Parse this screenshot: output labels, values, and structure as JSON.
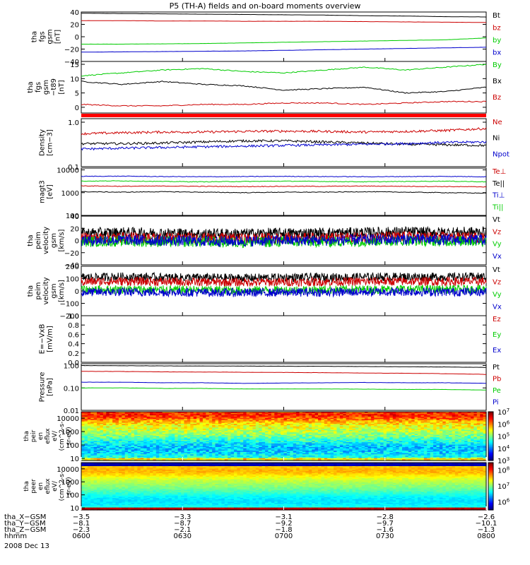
{
  "title": "P5 (TH-A) fields and on-board moments overview",
  "chart_data": {
    "type": "line",
    "time_ticks": [
      "0600",
      "0630",
      "0700",
      "0730",
      "0800"
    ],
    "time_range": [
      "0600",
      "0800"
    ],
    "date": "2008 Dec 13",
    "panels": [
      {
        "id": "fgs",
        "ylabel": [
          "tha",
          "fgs",
          "gsm",
          "[nT]"
        ],
        "yticks": [
          "40",
          "20",
          "0",
          "−20",
          "−40"
        ],
        "ylim": [
          -40,
          40
        ],
        "series": [
          {
            "name": "Bt",
            "color": "#000000",
            "values": [
              38,
              37.5,
              37,
              36.5,
              36,
              35.5,
              35,
              34,
              33.5,
              32.5,
              32
            ]
          },
          {
            "name": "bz",
            "color": "#cc0000",
            "values": [
              26,
              26,
              25.5,
              25.5,
              25,
              25,
              25,
              24.5,
              24,
              23.5,
              23
            ]
          },
          {
            "name": "by",
            "color": "#00cc00",
            "values": [
              -12,
              -12,
              -11.5,
              -11,
              -10,
              -9,
              -8,
              -7,
              -6,
              -5,
              -2
            ]
          },
          {
            "name": "bx",
            "color": "#0000cc",
            "values": [
              -25,
              -24.5,
              -24,
              -23.5,
              -23,
              -22,
              -21,
              -20,
              -19,
              -18,
              -17
            ]
          }
        ]
      },
      {
        "id": "fgs_t89",
        "ylabel": [
          "tha",
          "fgs",
          "gsm",
          "−t89",
          "[nT]"
        ],
        "yticks": [
          "15",
          "10",
          "5",
          "0"
        ],
        "ylim": [
          -2,
          16
        ],
        "series": [
          {
            "name": "By",
            "color": "#00cc00",
            "values": [
              11,
              12,
              13,
              13.5,
              12.5,
              12,
              13,
              14,
              13,
              14,
              15
            ]
          },
          {
            "name": "Bx",
            "color": "#000000",
            "values": [
              9,
              8,
              9,
              8,
              7.5,
              6,
              6.5,
              7,
              5,
              5.5,
              7
            ]
          },
          {
            "name": "Bz",
            "color": "#cc0000",
            "values": [
              1,
              0.5,
              0.5,
              1,
              1,
              1.5,
              1.5,
              1,
              1.5,
              2,
              2
            ]
          }
        ]
      },
      {
        "id": "density",
        "ylabel": [
          "Density",
          "[cm−3]"
        ],
        "yticks": [
          "1.0",
          "0.1"
        ],
        "ylim": [
          0.1,
          1.2
        ],
        "scale": "log",
        "series": [
          {
            "name": "Ne",
            "color": "#cc0000",
            "values": [
              0.55,
              0.58,
              0.6,
              0.6,
              0.62,
              0.63,
              0.62,
              0.6,
              0.62,
              0.65,
              0.72
            ]
          },
          {
            "name": "Ni",
            "color": "#000000",
            "values": [
              0.33,
              0.33,
              0.34,
              0.36,
              0.38,
              0.38,
              0.36,
              0.34,
              0.32,
              0.31,
              0.3
            ]
          },
          {
            "name": "Npot",
            "color": "#0000cc",
            "values": [
              0.25,
              0.26,
              0.27,
              0.28,
              0.29,
              0.3,
              0.31,
              0.32,
              0.33,
              0.35,
              0.36
            ]
          }
        ]
      },
      {
        "id": "temperature",
        "ylabel": [
          "magt3",
          "[eV]"
        ],
        "yticks": [
          "10000",
          "1000",
          "100"
        ],
        "ylim": [
          100,
          12000
        ],
        "scale": "log",
        "series": [
          {
            "name": "Te⊥",
            "color": "#cc0000",
            "values": [
              2000,
              1900,
              1950,
              1900,
              1850,
              1900,
              1900,
              1950,
              1900,
              1850,
              1800
            ]
          },
          {
            "name": "Te||",
            "color": "#000000",
            "values": [
              1100,
              1050,
              1100,
              1050,
              1000,
              1050,
              1050,
              1100,
              1050,
              1000,
              950
            ]
          },
          {
            "name": "Ti⊥",
            "color": "#0000cc",
            "values": [
              5200,
              5300,
              5100,
              5000,
              5100,
              5200,
              5100,
              5000,
              5100,
              5200,
              5000
            ]
          },
          {
            "name": "Ti||",
            "color": "#00cc00",
            "values": [
              3200,
              3300,
              3100,
              3000,
              3100,
              3200,
              3100,
              3000,
              3100,
              3200,
              3000
            ]
          }
        ]
      },
      {
        "id": "peim_velocity",
        "ylabel": [
          "tha",
          "peim",
          "velocity",
          "gsm",
          "[km/s]"
        ],
        "yticks": [
          "40",
          "20",
          "0",
          "−20",
          "−40"
        ],
        "ylim": [
          -40,
          40
        ],
        "series": [
          {
            "name": "Vt",
            "color": "#000000",
            "values": [
              12,
              13,
              12,
              11,
              11,
              12,
              12,
              13,
              14,
              13,
              14
            ]
          },
          {
            "name": "Vz",
            "color": "#cc0000",
            "values": [
              4,
              5,
              4,
              4,
              3,
              4,
              4,
              5,
              6,
              5,
              5
            ]
          },
          {
            "name": "Vy",
            "color": "#00cc00",
            "values": [
              -2,
              -1,
              -2,
              -2,
              -3,
              -2,
              -2,
              -1,
              0,
              -1,
              -1
            ]
          },
          {
            "name": "Vx",
            "color": "#0000cc",
            "values": [
              0,
              1,
              0,
              -1,
              -1,
              0,
              0,
              1,
              2,
              1,
              1
            ]
          }
        ]
      },
      {
        "id": "peim_velocity_2",
        "ylabel": [
          "tha",
          "peim",
          "velocity",
          "gsm",
          "[km/s]"
        ],
        "yticks": [
          "200",
          "100",
          "0",
          "−100",
          "−200"
        ],
        "ylim": [
          -200,
          200
        ],
        "series": [
          {
            "name": "Vt",
            "color": "#000000",
            "values": [
              110,
              115,
              110,
              108,
              105,
              108,
              110,
              112,
              115,
              112,
              115
            ]
          },
          {
            "name": "Vz",
            "color": "#cc0000",
            "values": [
              75,
              78,
              75,
              72,
              70,
              72,
              74,
              76,
              78,
              76,
              78
            ]
          },
          {
            "name": "Vy",
            "color": "#00cc00",
            "values": [
              10,
              12,
              10,
              8,
              5,
              8,
              10,
              12,
              14,
              12,
              14
            ]
          },
          {
            "name": "Vx",
            "color": "#0000cc",
            "values": [
              -10,
              -8,
              -10,
              -12,
              -14,
              -12,
              -10,
              -8,
              -6,
              -8,
              -6
            ]
          }
        ]
      },
      {
        "id": "efield",
        "ylabel": [
          "E=−VxB",
          "[mV/m]"
        ],
        "yticks": [
          "1.0",
          "0.8",
          "0.6",
          "0.4",
          "0.2",
          "0.0"
        ],
        "ylim": [
          0,
          1
        ],
        "series": [
          {
            "name": "Ez",
            "color": "#cc0000",
            "values": []
          },
          {
            "name": "Ey",
            "color": "#00cc00",
            "values": []
          },
          {
            "name": "Ex",
            "color": "#0000cc",
            "values": []
          }
        ]
      },
      {
        "id": "pressure",
        "ylabel": [
          "Pressure",
          "[nPa]"
        ],
        "yticks": [
          "1.00",
          "0.10",
          "0.01"
        ],
        "ylim": [
          0.01,
          1.2
        ],
        "scale": "log",
        "series": [
          {
            "name": "Pt",
            "color": "#000000",
            "values": [
              1.0,
              0.98,
              0.96,
              0.95,
              0.94,
              0.93,
              0.92,
              0.9,
              0.88,
              0.86,
              0.82
            ]
          },
          {
            "name": "Pb",
            "color": "#cc0000",
            "values": [
              0.55,
              0.54,
              0.52,
              0.51,
              0.5,
              0.49,
              0.48,
              0.46,
              0.45,
              0.43,
              0.4
            ]
          },
          {
            "name": "Pe",
            "color": "#00cc00",
            "values": [
              0.1,
              0.1,
              0.095,
              0.095,
              0.09,
              0.09,
              0.09,
              0.088,
              0.086,
              0.085,
              0.08
            ]
          },
          {
            "name": "Pi",
            "color": "#0000cc",
            "values": [
              0.18,
              0.18,
              0.17,
              0.17,
              0.16,
              0.165,
              0.17,
              0.175,
              0.17,
              0.17,
              0.16
            ]
          }
        ]
      }
    ],
    "spectrograms": [
      {
        "id": "peir",
        "type": "heatmap",
        "ylabel": [
          "tha",
          "peir",
          "en",
          "eflux",
          "eV/",
          "(cm^2-s-",
          "sr-eV)"
        ],
        "yticks": [
          "10000",
          "1000",
          "100",
          "10"
        ],
        "ylim": [
          7,
          30000
        ],
        "colorbar_ticks": [
          "10^7",
          "10^6",
          "10^5",
          "10^4",
          "10^3"
        ],
        "colorbar_range": [
          1000,
          10000000
        ]
      },
      {
        "id": "peer",
        "type": "heatmap",
        "ylabel": [
          "tha",
          "peer",
          "en",
          "eflux",
          "eV/",
          "(cm^2-s-",
          "sr-eV)"
        ],
        "yticks": [
          "10000",
          "1000",
          "100",
          "10"
        ],
        "ylim": [
          7,
          30000
        ],
        "colorbar_ticks": [
          "10^8",
          "10^7",
          "10^6"
        ],
        "colorbar_range": [
          300000,
          300000000
        ]
      }
    ],
    "position_rows": [
      {
        "label": "tha_X−GSM",
        "values": [
          "−3.5",
          "−3.3",
          "−3.1",
          "−2.8",
          "−2.6"
        ]
      },
      {
        "label": "tha_Y−GSM",
        "values": [
          "−8.1",
          "−8.7",
          "−9.2",
          "−9.7",
          "−10.1"
        ]
      },
      {
        "label": "tha_Z−GSM",
        "values": [
          "−2.3",
          "−2.1",
          "−1.8",
          "−1.6",
          "−1.3"
        ]
      },
      {
        "label": "hhmm",
        "values": [
          "0600",
          "0630",
          "0700",
          "0730",
          "0800"
        ]
      }
    ]
  }
}
